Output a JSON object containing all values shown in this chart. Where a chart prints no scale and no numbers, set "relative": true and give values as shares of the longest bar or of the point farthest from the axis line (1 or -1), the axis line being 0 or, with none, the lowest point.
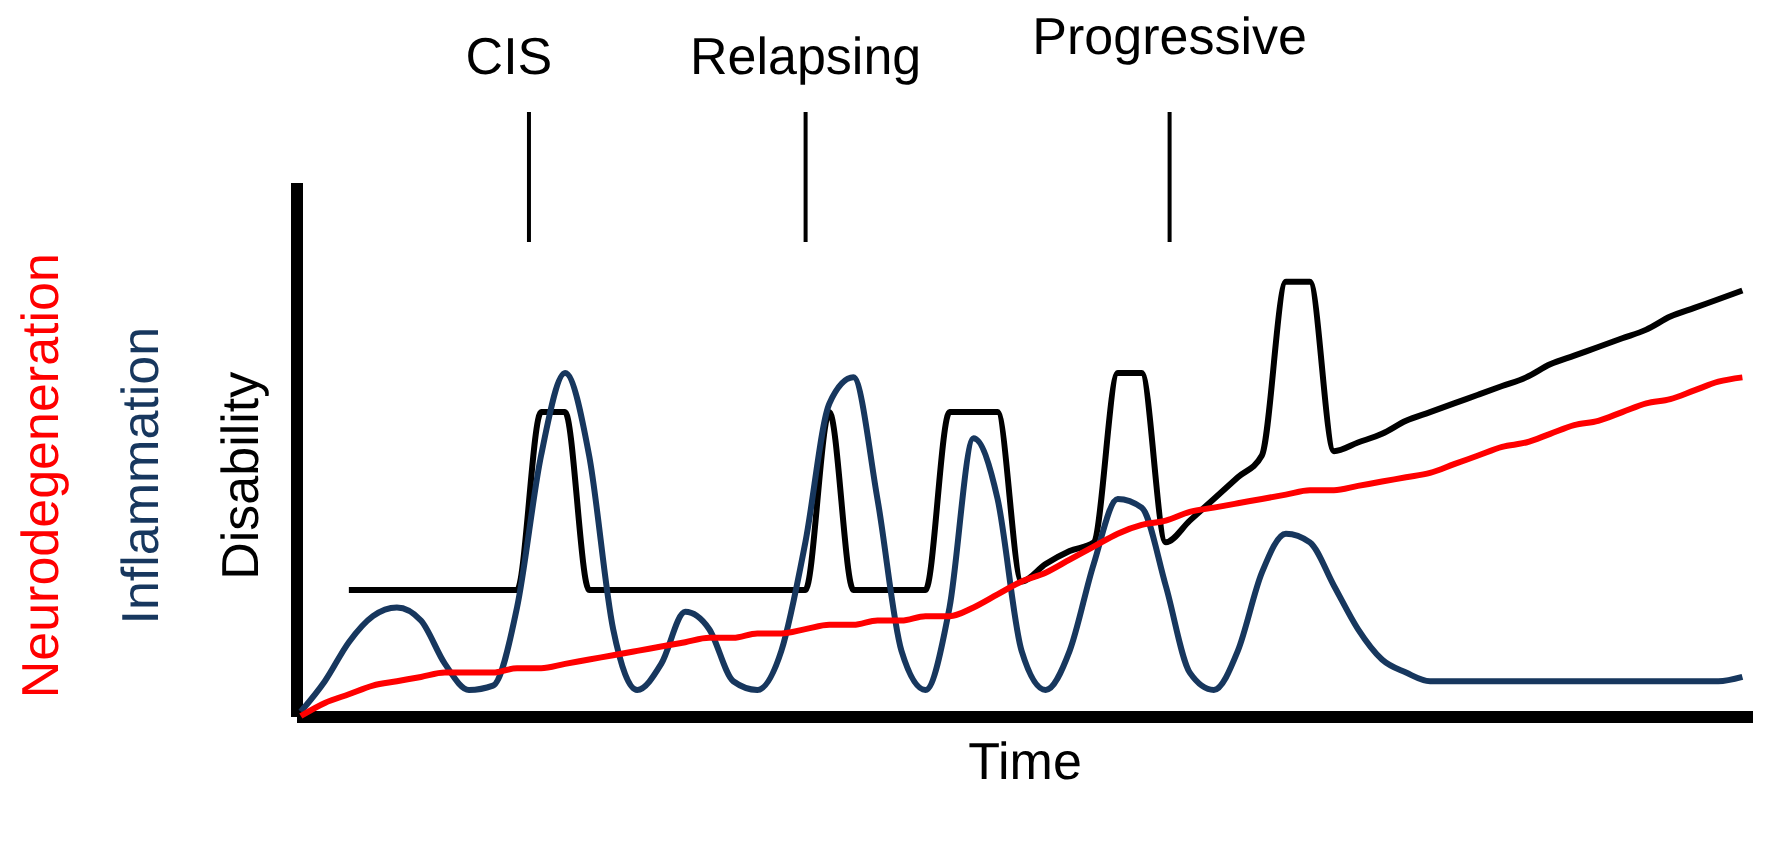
{
  "chart_data": {
    "type": "line",
    "relative": true,
    "xlabel": "Time",
    "legend": false,
    "tick_labels": false,
    "grid": false,
    "marker": "none",
    "line_style": "solid",
    "categories": [
      null,
      null,
      null,
      null,
      null,
      null,
      null,
      null,
      null,
      null,
      null,
      null,
      null,
      null,
      null,
      null,
      null,
      null,
      null,
      null,
      null,
      null,
      null,
      null,
      null,
      null,
      null,
      null,
      null,
      null,
      null,
      null,
      null,
      null,
      null,
      null,
      null,
      null,
      null,
      null,
      null,
      null,
      null,
      null,
      null,
      null,
      null,
      null,
      null,
      null,
      null,
      null,
      null,
      null,
      null,
      null,
      null,
      null,
      null,
      null,
      null
    ],
    "series": [
      {
        "name": "Disability",
        "color": "#000000",
        "values": [
          null,
          null,
          0.29,
          0.29,
          0.29,
          0.29,
          0.29,
          0.29,
          0.29,
          0.29,
          0.7,
          0.7,
          0.29,
          0.29,
          0.29,
          0.29,
          0.29,
          0.29,
          0.29,
          0.29,
          0.29,
          0.29,
          0.7,
          0.29,
          0.29,
          0.29,
          0.29,
          0.7,
          0.7,
          0.7,
          0.31,
          0.35,
          0.38,
          0.4,
          0.79,
          0.79,
          0.4,
          0.45,
          0.5,
          0.55,
          0.6,
          1.0,
          1.0,
          0.61,
          0.63,
          0.65,
          0.68,
          0.7,
          0.72,
          0.74,
          0.76,
          0.78,
          0.81,
          0.83,
          0.85,
          0.87,
          0.89,
          0.92,
          0.94,
          0.96,
          0.98
        ]
      },
      {
        "name": "Inflammation",
        "color": "#17375e",
        "values": [
          0.01,
          0.08,
          0.17,
          0.23,
          0.25,
          0.22,
          0.12,
          0.06,
          0.07,
          0.25,
          0.6,
          0.79,
          0.6,
          0.2,
          0.06,
          0.12,
          0.24,
          0.2,
          0.08,
          0.06,
          0.15,
          0.4,
          0.72,
          0.78,
          0.5,
          0.15,
          0.06,
          0.25,
          0.64,
          0.5,
          0.15,
          0.06,
          0.15,
          0.35,
          0.5,
          0.48,
          0.3,
          0.1,
          0.06,
          0.15,
          0.33,
          0.42,
          0.4,
          0.3,
          0.2,
          0.13,
          0.1,
          0.08,
          0.08,
          0.08,
          0.08,
          0.08,
          0.08,
          0.08,
          0.08,
          0.08,
          0.08,
          0.08,
          0.08,
          0.08,
          0.09
        ]
      },
      {
        "name": "Neurodegeneration",
        "color": "#ff0000",
        "values": [
          0.0,
          0.03,
          0.05,
          0.07,
          0.08,
          0.09,
          0.1,
          0.1,
          0.1,
          0.11,
          0.11,
          0.12,
          0.13,
          0.14,
          0.15,
          0.16,
          0.17,
          0.18,
          0.18,
          0.19,
          0.19,
          0.2,
          0.21,
          0.21,
          0.22,
          0.22,
          0.23,
          0.23,
          0.25,
          0.28,
          0.31,
          0.33,
          0.36,
          0.39,
          0.42,
          0.44,
          0.45,
          0.47,
          0.48,
          0.49,
          0.5,
          0.51,
          0.52,
          0.52,
          0.53,
          0.54,
          0.55,
          0.56,
          0.58,
          0.6,
          0.62,
          0.63,
          0.65,
          0.67,
          0.68,
          0.7,
          0.72,
          0.73,
          0.75,
          0.77,
          0.78
        ]
      }
    ],
    "annotations": [
      "CIS",
      "Relapsing",
      "Progressive"
    ]
  }
}
